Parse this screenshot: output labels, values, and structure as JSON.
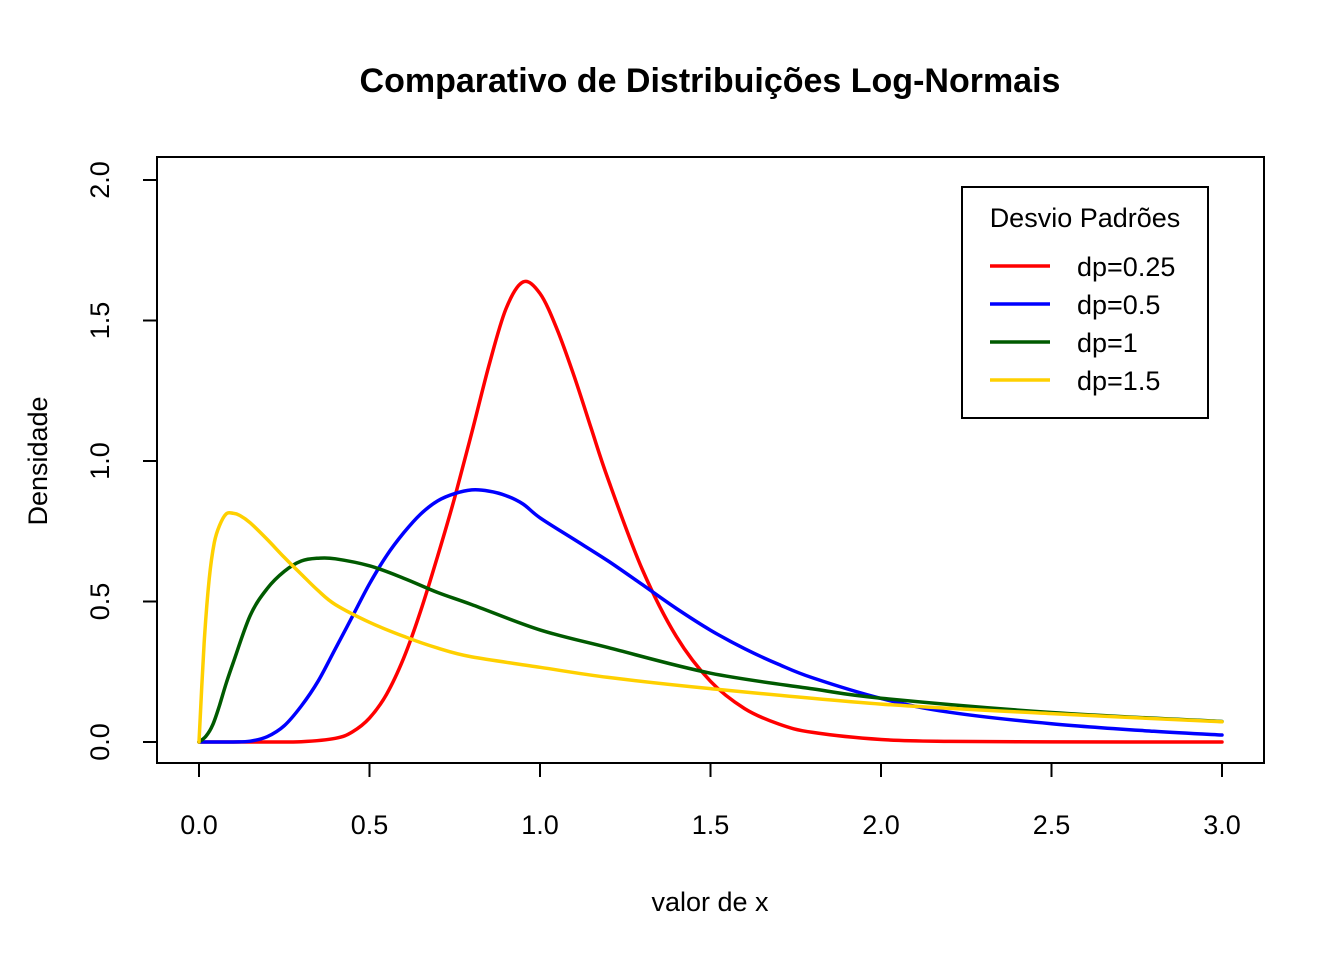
{
  "chart_data": {
    "type": "line",
    "title": "Comparativo de Distribuições Log-Normais",
    "xlabel": "valor de x",
    "ylabel": "Densidade",
    "xlim": [
      0,
      3
    ],
    "ylim": [
      0,
      2
    ],
    "x_ticks": [
      "0.0",
      "0.5",
      "1.0",
      "1.5",
      "2.0",
      "2.5",
      "3.0"
    ],
    "y_ticks": [
      "0.0",
      "0.5",
      "1.0",
      "1.5",
      "2.0"
    ],
    "grid": false,
    "legend": {
      "title": "Desvio Padrões",
      "placement": "top-right"
    },
    "series": [
      {
        "name": "dp=0.25",
        "color": "#ff0000",
        "x": [
          0,
          0.1,
          0.2,
          0.3,
          0.4,
          0.45,
          0.5,
          0.55,
          0.6,
          0.65,
          0.7,
          0.75,
          0.8,
          0.85,
          0.9,
          0.95,
          1.0,
          1.05,
          1.1,
          1.15,
          1.2,
          1.3,
          1.4,
          1.5,
          1.6,
          1.7,
          1.8,
          2.0,
          2.2,
          2.5,
          3.0
        ],
        "y": [
          0,
          0,
          0,
          0.001,
          0.013,
          0.036,
          0.085,
          0.17,
          0.298,
          0.466,
          0.662,
          0.871,
          1.101,
          1.338,
          1.541,
          1.637,
          1.596,
          1.469,
          1.302,
          1.117,
          0.934,
          0.614,
          0.375,
          0.216,
          0.119,
          0.064,
          0.034,
          0.009,
          0.002,
          0.0003,
          0
        ]
      },
      {
        "name": "dp=0.5",
        "color": "#0000ff",
        "x": [
          0,
          0.1,
          0.15,
          0.2,
          0.25,
          0.3,
          0.35,
          0.4,
          0.45,
          0.5,
          0.55,
          0.6,
          0.65,
          0.7,
          0.75,
          0.8,
          0.85,
          0.9,
          0.95,
          1.0,
          1.1,
          1.2,
          1.3,
          1.4,
          1.5,
          1.6,
          1.7,
          1.8,
          2.0,
          2.2,
          2.5,
          2.8,
          3.0
        ],
        "y": [
          0,
          0.0001,
          0.003,
          0.019,
          0.058,
          0.128,
          0.218,
          0.332,
          0.447,
          0.563,
          0.663,
          0.744,
          0.811,
          0.858,
          0.884,
          0.897,
          0.893,
          0.877,
          0.847,
          0.798,
          0.721,
          0.644,
          0.56,
          0.475,
          0.398,
          0.332,
          0.276,
          0.228,
          0.155,
          0.106,
          0.065,
          0.038,
          0.025
        ]
      },
      {
        "name": "dp=1",
        "color": "#005a00",
        "x": [
          0,
          0.02,
          0.04,
          0.06,
          0.08,
          0.1,
          0.15,
          0.2,
          0.25,
          0.3,
          0.35,
          0.4,
          0.5,
          0.6,
          0.7,
          0.8,
          1.0,
          1.2,
          1.5,
          1.8,
          2.0,
          2.5,
          3.0
        ],
        "y": [
          0,
          0.02,
          0.06,
          0.13,
          0.21,
          0.281,
          0.45,
          0.546,
          0.607,
          0.644,
          0.654,
          0.652,
          0.627,
          0.583,
          0.532,
          0.489,
          0.399,
          0.336,
          0.245,
          0.189,
          0.156,
          0.105,
          0.073
        ]
      },
      {
        "name": "dp=1.5",
        "color": "#ffd000",
        "x": [
          0,
          0.015,
          0.03,
          0.045,
          0.06,
          0.08,
          0.1,
          0.12,
          0.15,
          0.2,
          0.25,
          0.3,
          0.35,
          0.4,
          0.5,
          0.6,
          0.7,
          0.8,
          1.0,
          1.2,
          1.5,
          2.0,
          2.5,
          3.0
        ],
        "y": [
          0,
          0.35,
          0.58,
          0.71,
          0.77,
          0.812,
          0.814,
          0.806,
          0.78,
          0.721,
          0.657,
          0.597,
          0.538,
          0.489,
          0.426,
          0.376,
          0.334,
          0.303,
          0.266,
          0.23,
          0.19,
          0.135,
          0.101,
          0.072
        ]
      }
    ]
  }
}
